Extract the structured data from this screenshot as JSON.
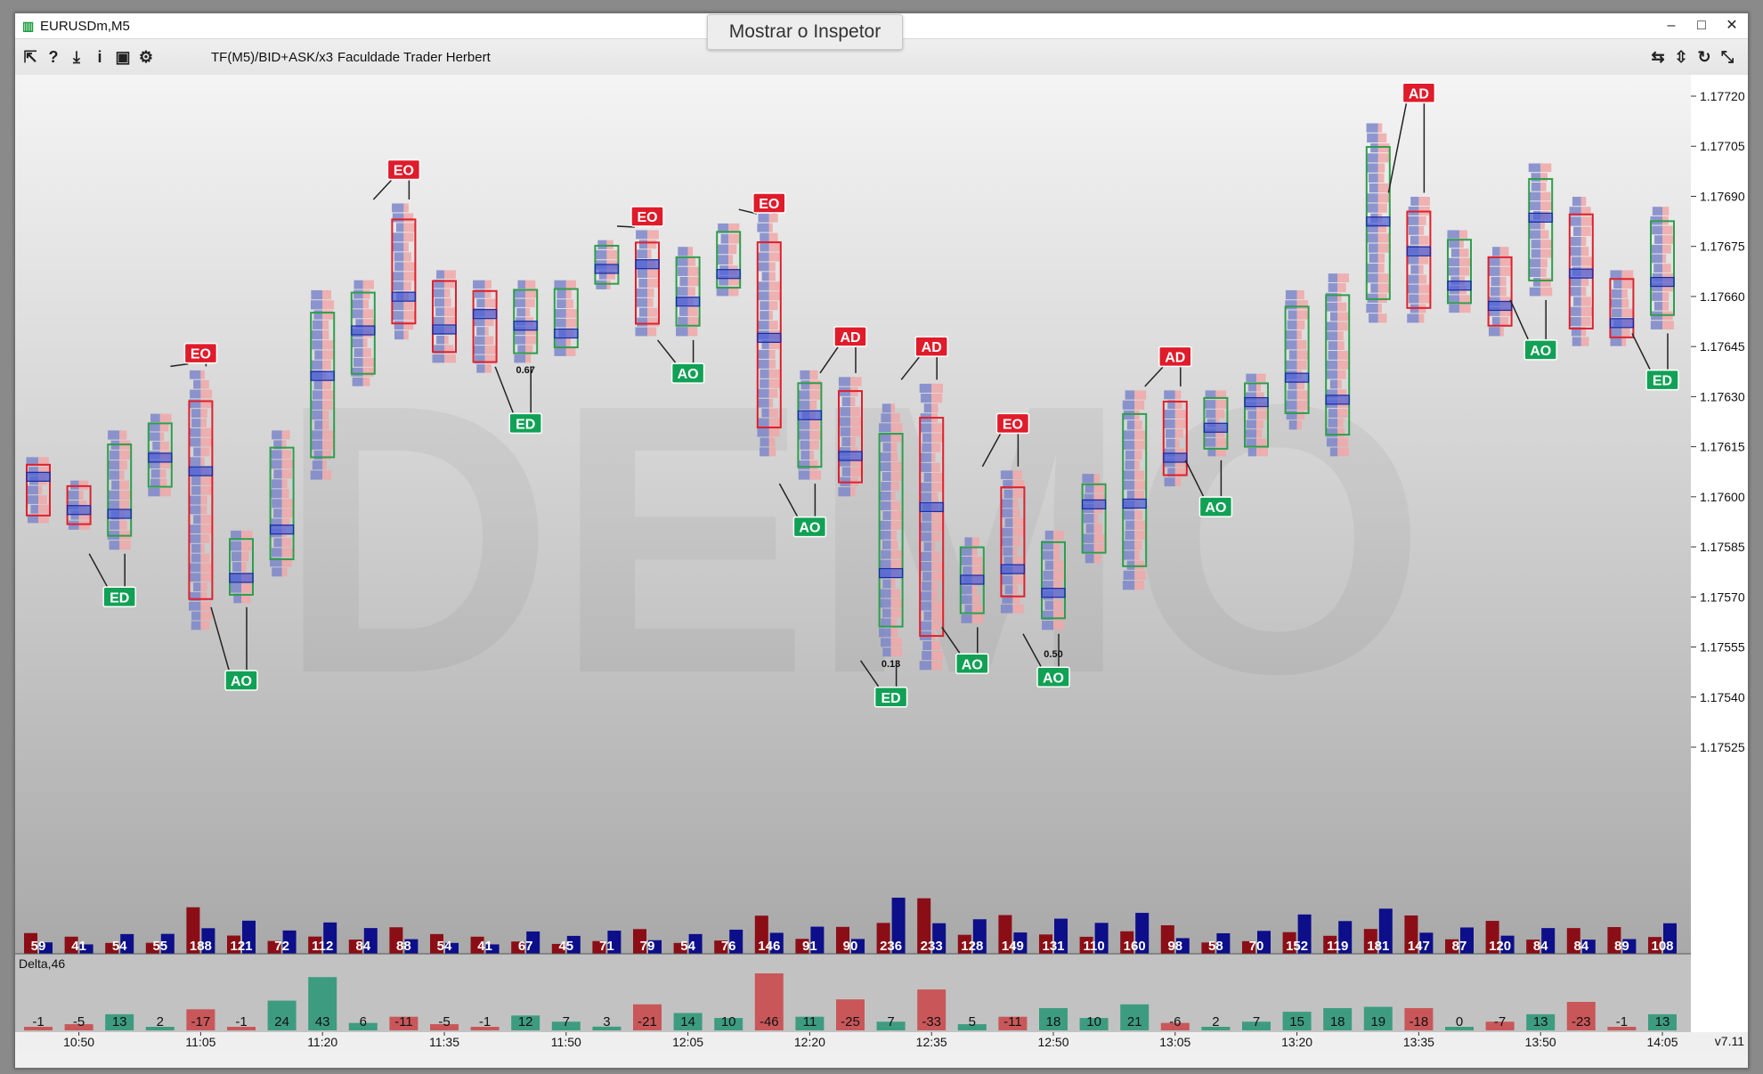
{
  "window": {
    "title": "EURUSDm,M5"
  },
  "inspector_button": "Mostrar o Inspetor",
  "toolbar": {
    "indicator": "TF(M5)/BID+ASK/x3",
    "author": "Faculdade Trader Herbert"
  },
  "watermark": "DEMO",
  "version": "v7.11",
  "delta_label": "Delta,46",
  "price_axis": [
    "1.17720",
    "1.17705",
    "1.17690",
    "1.17675",
    "1.17660",
    "1.17645",
    "1.17630",
    "1.17615",
    "1.17600",
    "1.17585",
    "1.17570",
    "1.17555",
    "1.17540",
    "1.17525"
  ],
  "time_axis": [
    "10:50",
    "11:05",
    "11:20",
    "11:35",
    "11:50",
    "12:05",
    "12:20",
    "12:35",
    "12:50",
    "13:05",
    "13:20",
    "13:35",
    "13:50",
    "14:05"
  ],
  "colors": {
    "bull": "#2e9e4c",
    "bear": "#e0202c",
    "sell_volume": "#8b0e16",
    "buy_volume": "#0d0e8a",
    "delta_pos": "#3d9c80",
    "delta_neg": "#c9575a"
  },
  "bars": [
    {
      "volume": 59,
      "delta": -1,
      "high": 1.17612,
      "low": 1.17592,
      "bull": false
    },
    {
      "volume": 41,
      "delta": -5,
      "high": 1.17605,
      "low": 1.1759,
      "bull": false
    },
    {
      "volume": 54,
      "delta": 13,
      "high": 1.1762,
      "low": 1.17584,
      "bull": true
    },
    {
      "volume": 55,
      "delta": 2,
      "high": 1.17625,
      "low": 1.176,
      "bull": true
    },
    {
      "volume": 188,
      "delta": -17,
      "high": 1.17638,
      "low": 1.1756,
      "bull": false
    },
    {
      "volume": 121,
      "delta": -1,
      "high": 1.1759,
      "low": 1.17568,
      "bull": true
    },
    {
      "volume": 72,
      "delta": 24,
      "high": 1.1762,
      "low": 1.17576,
      "bull": true
    },
    {
      "volume": 112,
      "delta": 43,
      "high": 1.17662,
      "low": 1.17605,
      "bull": true
    },
    {
      "volume": 84,
      "delta": 6,
      "high": 1.17665,
      "low": 1.17633,
      "bull": true
    },
    {
      "volume": 88,
      "delta": -11,
      "high": 1.17688,
      "low": 1.17647,
      "bull": false
    },
    {
      "volume": 54,
      "delta": -5,
      "high": 1.17668,
      "low": 1.1764,
      "bull": false
    },
    {
      "volume": 41,
      "delta": -1,
      "high": 1.17665,
      "low": 1.17637,
      "bull": false
    },
    {
      "volume": 67,
      "delta": 12,
      "high": 1.17665,
      "low": 1.1764,
      "bull": true
    },
    {
      "volume": 45,
      "delta": 7,
      "high": 1.17665,
      "low": 1.17642,
      "bull": true
    },
    {
      "volume": 71,
      "delta": 3,
      "high": 1.17677,
      "low": 1.17662,
      "bull": true
    },
    {
      "volume": 79,
      "delta": -21,
      "high": 1.1768,
      "low": 1.17648,
      "bull": false
    },
    {
      "volume": 54,
      "delta": 14,
      "high": 1.17675,
      "low": 1.17648,
      "bull": true
    },
    {
      "volume": 76,
      "delta": 10,
      "high": 1.17682,
      "low": 1.1766,
      "bull": true
    },
    {
      "volume": 146,
      "delta": -46,
      "high": 1.17685,
      "low": 1.17612,
      "bull": false
    },
    {
      "volume": 91,
      "delta": 11,
      "high": 1.17638,
      "low": 1.17605,
      "bull": true
    },
    {
      "volume": 90,
      "delta": -25,
      "high": 1.17636,
      "low": 1.176,
      "bull": false
    },
    {
      "volume": 236,
      "delta": 7,
      "high": 1.17628,
      "low": 1.17552,
      "bull": true
    },
    {
      "volume": 233,
      "delta": -33,
      "high": 1.17634,
      "low": 1.17548,
      "bull": false
    },
    {
      "volume": 128,
      "delta": 5,
      "high": 1.17588,
      "low": 1.17562,
      "bull": true
    },
    {
      "volume": 149,
      "delta": -11,
      "high": 1.17608,
      "low": 1.17565,
      "bull": false
    },
    {
      "volume": 131,
      "delta": 18,
      "high": 1.1759,
      "low": 1.1756,
      "bull": true
    },
    {
      "volume": 110,
      "delta": 10,
      "high": 1.17607,
      "low": 1.1758,
      "bull": true
    },
    {
      "volume": 160,
      "delta": 21,
      "high": 1.17632,
      "low": 1.17572,
      "bull": true
    },
    {
      "volume": 98,
      "delta": -6,
      "high": 1.17632,
      "low": 1.17603,
      "bull": false
    },
    {
      "volume": 58,
      "delta": 2,
      "high": 1.17632,
      "low": 1.17612,
      "bull": true
    },
    {
      "volume": 70,
      "delta": 7,
      "high": 1.17637,
      "low": 1.17612,
      "bull": true
    },
    {
      "volume": 152,
      "delta": 15,
      "high": 1.17662,
      "low": 1.1762,
      "bull": true
    },
    {
      "volume": 119,
      "delta": 18,
      "high": 1.17667,
      "low": 1.17612,
      "bull": true
    },
    {
      "volume": 181,
      "delta": 19,
      "high": 1.17712,
      "low": 1.17652,
      "bull": true
    },
    {
      "volume": 147,
      "delta": -18,
      "high": 1.1769,
      "low": 1.17652,
      "bull": false
    },
    {
      "volume": 87,
      "delta": 0,
      "high": 1.1768,
      "low": 1.17655,
      "bull": true
    },
    {
      "volume": 120,
      "delta": -7,
      "high": 1.17675,
      "low": 1.17648,
      "bull": false
    },
    {
      "volume": 84,
      "delta": 13,
      "high": 1.177,
      "low": 1.1766,
      "bull": true
    },
    {
      "volume": 84,
      "delta": -23,
      "high": 1.1769,
      "low": 1.17645,
      "bull": false
    },
    {
      "volume": 89,
      "delta": -1,
      "high": 1.17668,
      "low": 1.17645,
      "bull": false
    },
    {
      "volume": 108,
      "delta": 13,
      "high": 1.17687,
      "low": 1.1765,
      "bull": true
    }
  ],
  "signals": [
    {
      "label": "EO",
      "bar": 4,
      "price": 1.17643
    },
    {
      "label": "EO",
      "bar": 9,
      "price": 1.17698
    },
    {
      "label": "EO",
      "bar": 15,
      "price": 1.17684
    },
    {
      "label": "EO",
      "bar": 18,
      "price": 1.17688
    },
    {
      "label": "AD",
      "bar": 20,
      "price": 1.17648
    },
    {
      "label": "AD",
      "bar": 22,
      "price": 1.17645
    },
    {
      "label": "EO",
      "bar": 24,
      "price": 1.17622
    },
    {
      "label": "AD",
      "bar": 28,
      "price": 1.17642
    },
    {
      "label": "AD",
      "bar": 34,
      "price": 1.17721
    },
    {
      "label": "ED",
      "bar": 2,
      "price": 1.1757
    },
    {
      "label": "AO",
      "bar": 5,
      "price": 1.17545
    },
    {
      "label": "ED",
      "bar": 12,
      "price": 1.17622
    },
    {
      "label": "AO",
      "bar": 16,
      "price": 1.17637
    },
    {
      "label": "AO",
      "bar": 19,
      "price": 1.17591
    },
    {
      "label": "ED",
      "bar": 21,
      "price": 1.1754
    },
    {
      "label": "AO",
      "bar": 23,
      "price": 1.1755
    },
    {
      "label": "AO",
      "bar": 25,
      "price": 1.17546
    },
    {
      "label": "AO",
      "bar": 29,
      "price": 1.17597
    },
    {
      "label": "AO",
      "bar": 37,
      "price": 1.17644
    },
    {
      "label": "ED",
      "bar": 40,
      "price": 1.17635
    }
  ],
  "annotations": [
    {
      "text": "0.67",
      "bar": 12,
      "price": 1.17637
    },
    {
      "text": "0.13",
      "bar": 21,
      "price": 1.17549
    },
    {
      "text": "0.50",
      "bar": 25,
      "price": 1.17552
    }
  ]
}
